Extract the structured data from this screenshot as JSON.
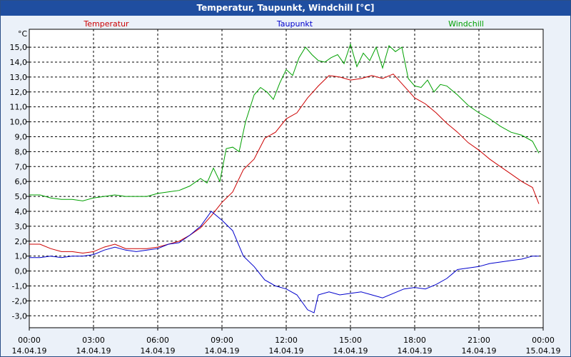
{
  "window_title": "Temperatur, Taupunkt, Windchill [°C]",
  "chart_data": {
    "type": "line",
    "title": "Temperatur, Taupunkt, Windchill [°C]",
    "unit_label": "°C",
    "ylim": [
      -3.8,
      16.2
    ],
    "y_ticks": [
      "-3,0",
      "-2,0",
      "-1,0",
      "0,0",
      "1,0",
      "2,0",
      "3,0",
      "4,0",
      "5,0",
      "6,0",
      "7,0",
      "8,0",
      "9,0",
      "10,0",
      "11,0",
      "12,0",
      "13,0",
      "14,0",
      "15,0"
    ],
    "xlim_hours": [
      0,
      24
    ],
    "x_ticks": [
      {
        "time": "00:00",
        "date": "14.04.19"
      },
      {
        "time": "03:00",
        "date": "14.04.19"
      },
      {
        "time": "06:00",
        "date": "14.04.19"
      },
      {
        "time": "09:00",
        "date": "14.04.19"
      },
      {
        "time": "12:00",
        "date": "14.04.19"
      },
      {
        "time": "15:00",
        "date": "14.04.19"
      },
      {
        "time": "18:00",
        "date": "14.04.19"
      },
      {
        "time": "21:00",
        "date": "14.04.19"
      },
      {
        "time": "00:00",
        "date": "15.04.19"
      }
    ],
    "grid": true,
    "legend": "top",
    "series": [
      {
        "name": "Temperatur",
        "color": "#cc0000",
        "x": [
          0,
          0.5,
          1,
          1.5,
          2,
          2.5,
          3,
          3.5,
          4,
          4.5,
          5,
          5.5,
          6,
          6.5,
          7,
          7.5,
          8,
          8.5,
          9,
          9.5,
          10,
          10.5,
          11,
          11.5,
          12,
          12.5,
          13,
          13.5,
          14,
          14.5,
          15,
          15.5,
          16,
          16.5,
          17,
          17.5,
          18,
          18.5,
          19,
          19.5,
          20,
          20.5,
          21,
          21.5,
          22,
          22.5,
          23,
          23.5,
          23.8
        ],
        "y": [
          1.8,
          1.8,
          1.5,
          1.3,
          1.3,
          1.2,
          1.3,
          1.6,
          1.8,
          1.5,
          1.5,
          1.5,
          1.6,
          1.8,
          2.0,
          2.4,
          2.9,
          3.7,
          4.6,
          5.3,
          6.8,
          7.5,
          8.9,
          9.3,
          10.2,
          10.6,
          11.6,
          12.4,
          13.1,
          13.0,
          12.8,
          12.9,
          13.1,
          12.9,
          13.2,
          12.4,
          11.6,
          11.2,
          10.6,
          9.9,
          9.3,
          8.6,
          8.1,
          7.5,
          7.0,
          6.5,
          6.0,
          5.6,
          4.5
        ]
      },
      {
        "name": "Taupunkt",
        "color": "#0000cc",
        "x": [
          0,
          0.5,
          1,
          1.5,
          2,
          2.5,
          3,
          3.5,
          4,
          4.5,
          5,
          5.5,
          6,
          6.5,
          7,
          7.5,
          8,
          8.5,
          9,
          9.5,
          10,
          10.5,
          11,
          11.5,
          12,
          12.5,
          13,
          13.3,
          13.5,
          14,
          14.5,
          15,
          15.5,
          16,
          16.5,
          17,
          17.5,
          18,
          18.5,
          19,
          19.5,
          20,
          20.5,
          21,
          21.5,
          22,
          22.5,
          23,
          23.5,
          23.8
        ],
        "y": [
          0.9,
          0.9,
          1.0,
          0.9,
          1.0,
          1.0,
          1.1,
          1.4,
          1.6,
          1.4,
          1.3,
          1.4,
          1.5,
          1.8,
          1.9,
          2.4,
          3.0,
          4.0,
          3.4,
          2.7,
          1.0,
          0.3,
          -0.6,
          -1.0,
          -1.2,
          -1.6,
          -2.6,
          -2.8,
          -1.6,
          -1.4,
          -1.6,
          -1.5,
          -1.4,
          -1.6,
          -1.8,
          -1.5,
          -1.2,
          -1.1,
          -1.2,
          -0.9,
          -0.5,
          0.1,
          0.2,
          0.3,
          0.5,
          0.6,
          0.7,
          0.8,
          1.0,
          1.0
        ]
      },
      {
        "name": "Windchill",
        "color": "#00a000",
        "x": [
          0,
          0.5,
          1,
          1.5,
          2,
          2.5,
          3,
          3.5,
          4,
          4.5,
          5,
          5.5,
          6,
          6.5,
          7,
          7.5,
          8,
          8.3,
          8.6,
          8.9,
          9.2,
          9.5,
          9.8,
          10.1,
          10.5,
          10.8,
          11.1,
          11.4,
          11.7,
          12,
          12.3,
          12.6,
          12.9,
          13.2,
          13.5,
          13.8,
          14.1,
          14.4,
          14.7,
          15,
          15.3,
          15.6,
          15.9,
          16.2,
          16.5,
          16.8,
          17.1,
          17.4,
          17.7,
          18,
          18.3,
          18.6,
          18.9,
          19.2,
          19.5,
          20,
          20.5,
          21,
          21.5,
          22,
          22.5,
          23,
          23.5,
          23.8
        ],
        "y": [
          5.1,
          5.1,
          4.9,
          4.8,
          4.8,
          4.7,
          4.9,
          5.0,
          5.1,
          5.0,
          5.0,
          5.0,
          5.2,
          5.3,
          5.4,
          5.7,
          6.2,
          5.9,
          6.9,
          6.0,
          8.2,
          8.3,
          8.0,
          10.0,
          11.8,
          12.3,
          12.0,
          11.5,
          12.6,
          13.5,
          13.1,
          14.3,
          15.0,
          14.5,
          14.1,
          14.0,
          14.3,
          14.5,
          13.9,
          15.2,
          13.7,
          14.6,
          14.1,
          15.0,
          13.6,
          15.1,
          14.7,
          15.0,
          12.9,
          12.4,
          12.3,
          12.8,
          12.0,
          12.5,
          12.4,
          11.8,
          11.1,
          10.6,
          10.2,
          9.7,
          9.3,
          9.1,
          8.7,
          7.9
        ]
      }
    ]
  }
}
